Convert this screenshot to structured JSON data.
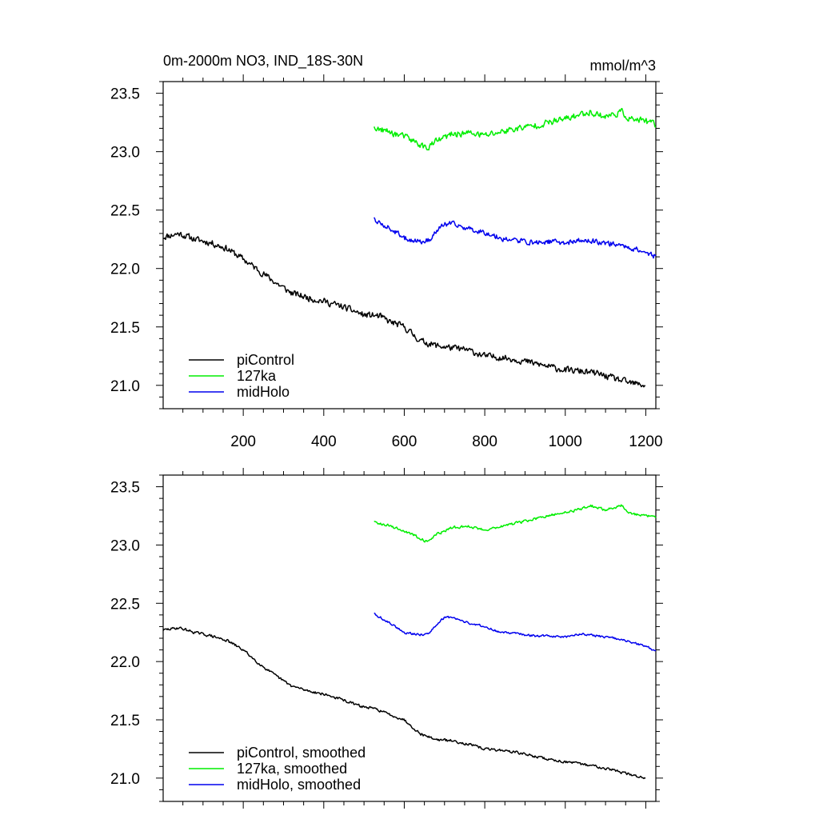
{
  "header": {
    "title": "0m-2000m NO3, IND_18S-30N",
    "units": "mmol/m^3"
  },
  "colors": {
    "piControl": "#000000",
    "127ka": "#00ee00",
    "midHolo": "#0000ee",
    "axis": "#000000"
  },
  "chart_data": [
    {
      "type": "line",
      "panel": "top",
      "title": "0m-2000m NO3, IND_18S-30N",
      "units_label": "mmol/m^3",
      "xlabel": "",
      "ylabel": "",
      "xlim": [
        1,
        1225
      ],
      "ylim": [
        20.8,
        23.6
      ],
      "xticks": [
        200,
        400,
        600,
        800,
        1000,
        1200
      ],
      "xtick_labels": [
        "200",
        "400",
        "600",
        "800",
        "1000",
        "1200"
      ],
      "yticks": [
        21.0,
        21.5,
        22.0,
        22.5,
        23.0,
        23.5
      ],
      "ytick_labels": [
        "21.0",
        "21.5",
        "22.0",
        "22.5",
        "23.0",
        "23.5"
      ],
      "grid": false,
      "legend_placement": "bottom-left",
      "series": [
        {
          "name": "piControl",
          "color": "#000000",
          "noise": 0.025,
          "x": [
            1,
            40,
            80,
            120,
            160,
            200,
            240,
            280,
            320,
            360,
            400,
            440,
            480,
            500,
            520,
            540,
            560,
            600,
            640,
            680,
            720,
            760,
            800,
            840,
            880,
            920,
            960,
            1000,
            1040,
            1080,
            1120,
            1160,
            1200
          ],
          "y": [
            22.27,
            22.3,
            22.25,
            22.22,
            22.17,
            22.08,
            21.98,
            21.88,
            21.79,
            21.75,
            21.72,
            21.68,
            21.63,
            21.6,
            21.6,
            21.59,
            21.55,
            21.5,
            21.38,
            21.34,
            21.32,
            21.3,
            21.25,
            21.24,
            21.22,
            21.19,
            21.16,
            21.13,
            21.12,
            21.1,
            21.06,
            21.02,
            21.0
          ]
        },
        {
          "name": "127ka",
          "color": "#00ee00",
          "noise": 0.025,
          "x": [
            525,
            560,
            600,
            640,
            655,
            680,
            720,
            760,
            800,
            840,
            880,
            920,
            960,
            1000,
            1040,
            1060,
            1100,
            1140,
            1160,
            1200,
            1225
          ],
          "y": [
            23.2,
            23.17,
            23.13,
            23.06,
            23.03,
            23.09,
            23.15,
            23.16,
            23.14,
            23.17,
            23.2,
            23.22,
            23.25,
            23.28,
            23.32,
            23.34,
            23.3,
            23.34,
            23.28,
            23.26,
            23.23
          ]
        },
        {
          "name": "midHolo",
          "color": "#0000ee",
          "noise": 0.02,
          "x": [
            525,
            560,
            600,
            640,
            660,
            680,
            700,
            720,
            760,
            800,
            840,
            880,
            920,
            960,
            1000,
            1040,
            1080,
            1120,
            1160,
            1200,
            1225
          ],
          "y": [
            22.42,
            22.35,
            22.26,
            22.23,
            22.24,
            22.32,
            22.38,
            22.38,
            22.34,
            22.31,
            22.26,
            22.24,
            22.22,
            22.23,
            22.22,
            22.24,
            22.23,
            22.21,
            22.18,
            22.14,
            22.1
          ]
        }
      ]
    },
    {
      "type": "line",
      "panel": "bottom",
      "xlabel": "",
      "ylabel": "",
      "xlim": [
        1,
        1225
      ],
      "ylim": [
        20.8,
        23.6
      ],
      "xticks": [
        200,
        400,
        600,
        800,
        1000,
        1200
      ],
      "yticks": [
        21.0,
        21.5,
        22.0,
        22.5,
        23.0,
        23.5
      ],
      "ytick_labels": [
        "21.0",
        "21.5",
        "22.0",
        "22.5",
        "23.0",
        "23.5"
      ],
      "grid": false,
      "legend_placement": "bottom-left",
      "series": [
        {
          "name": "piControl, smoothed",
          "color": "#000000",
          "noise": 0.01,
          "x": [
            1,
            40,
            80,
            120,
            160,
            200,
            240,
            280,
            320,
            360,
            400,
            440,
            480,
            500,
            520,
            540,
            560,
            600,
            640,
            680,
            720,
            760,
            800,
            840,
            880,
            920,
            960,
            1000,
            1040,
            1080,
            1120,
            1160,
            1200
          ],
          "y": [
            22.27,
            22.29,
            22.25,
            22.22,
            22.18,
            22.1,
            21.98,
            21.88,
            21.79,
            21.75,
            21.72,
            21.68,
            21.63,
            21.61,
            21.6,
            21.58,
            21.55,
            21.5,
            21.38,
            21.33,
            21.32,
            21.29,
            21.25,
            21.24,
            21.22,
            21.19,
            21.16,
            21.14,
            21.12,
            21.1,
            21.07,
            21.03,
            21.0
          ]
        },
        {
          "name": "127ka, smoothed",
          "color": "#00ee00",
          "noise": 0.01,
          "x": [
            525,
            560,
            600,
            640,
            655,
            680,
            720,
            760,
            800,
            840,
            880,
            920,
            960,
            1000,
            1040,
            1060,
            1100,
            1140,
            1160,
            1200,
            1225
          ],
          "y": [
            23.2,
            23.17,
            23.12,
            23.06,
            23.03,
            23.09,
            23.15,
            23.16,
            23.13,
            23.16,
            23.19,
            23.22,
            23.25,
            23.28,
            23.31,
            23.34,
            23.3,
            23.34,
            23.27,
            23.25,
            23.24
          ]
        },
        {
          "name": "midHolo, smoothed",
          "color": "#0000ee",
          "noise": 0.008,
          "x": [
            525,
            560,
            600,
            640,
            660,
            680,
            700,
            720,
            760,
            800,
            840,
            880,
            920,
            960,
            1000,
            1040,
            1080,
            1120,
            1160,
            1200,
            1225
          ],
          "y": [
            22.41,
            22.34,
            22.25,
            22.23,
            22.24,
            22.32,
            22.38,
            22.38,
            22.33,
            22.3,
            22.25,
            22.24,
            22.22,
            22.22,
            22.21,
            22.24,
            22.22,
            22.2,
            22.17,
            22.13,
            22.09
          ]
        }
      ]
    }
  ]
}
